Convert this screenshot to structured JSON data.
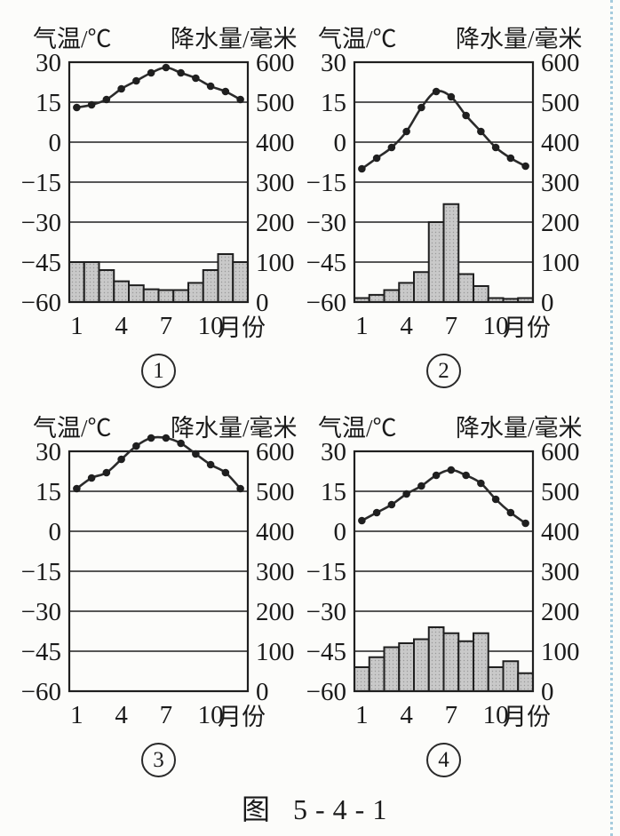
{
  "page": {
    "caption": "图 5-4-1",
    "ink_color": "#1f1f1f",
    "bar_fill": "#c9c9c9",
    "edge_dotted_color": "#a5cbdd"
  },
  "chart_data": [
    {
      "type": "line+bar",
      "label": "1",
      "title_left": "气温/℃",
      "title_right": "降水量/毫米",
      "x_unit": "月份",
      "x_tick_months": [
        1,
        4,
        7,
        10
      ],
      "x_tick_labels": [
        "1",
        "4",
        "7",
        "10"
      ],
      "left_axis": {
        "min": -60,
        "max": 30,
        "tick_values": [
          30,
          15,
          0,
          -15,
          -30,
          -45,
          -60
        ],
        "tick_labels": [
          "30",
          "15",
          "0",
          "−15",
          "−30",
          "−45",
          "−60"
        ]
      },
      "right_axis": {
        "min": 0,
        "max": 600,
        "tick_values": [
          600,
          500,
          400,
          300,
          200,
          100,
          0
        ],
        "tick_labels": [
          "600",
          "500",
          "400",
          "300",
          "200",
          "100",
          "0"
        ]
      },
      "months": [
        1,
        2,
        3,
        4,
        5,
        6,
        7,
        8,
        9,
        10,
        11,
        12
      ],
      "temperature_c": [
        13,
        14,
        16,
        20,
        23,
        26,
        28,
        26,
        24,
        21,
        19,
        16
      ],
      "precipitation_mm": [
        100,
        100,
        80,
        52,
        42,
        32,
        30,
        30,
        48,
        80,
        120,
        100
      ]
    },
    {
      "type": "line+bar",
      "label": "2",
      "title_left": "气温/℃",
      "title_right": "降水量/毫米",
      "x_unit": "月份",
      "x_tick_months": [
        1,
        4,
        7,
        10
      ],
      "x_tick_labels": [
        "1",
        "4",
        "7",
        "10"
      ],
      "left_axis": {
        "min": -60,
        "max": 30,
        "tick_values": [
          30,
          15,
          0,
          -15,
          -30,
          -45,
          -60
        ],
        "tick_labels": [
          "30",
          "15",
          "0",
          "−15",
          "−30",
          "−45",
          "−60"
        ]
      },
      "right_axis": {
        "min": 0,
        "max": 600,
        "tick_values": [
          600,
          500,
          400,
          300,
          200,
          100,
          0
        ],
        "tick_labels": [
          "600",
          "500",
          "400",
          "300",
          "200",
          "100",
          "0"
        ]
      },
      "months": [
        1,
        2,
        3,
        4,
        5,
        6,
        7,
        8,
        9,
        10,
        11,
        12
      ],
      "temperature_c": [
        -10,
        -6,
        -2,
        4,
        13,
        19,
        17,
        10,
        4,
        -2,
        -6,
        -9
      ],
      "precipitation_mm": [
        10,
        18,
        30,
        48,
        75,
        200,
        245,
        70,
        40,
        10,
        8,
        10
      ]
    },
    {
      "type": "line+bar",
      "label": "3",
      "title_left": "气温/℃",
      "title_right": "降水量/毫米",
      "x_unit": "月份",
      "x_tick_months": [
        1,
        4,
        7,
        10
      ],
      "x_tick_labels": [
        "1",
        "4",
        "7",
        "10"
      ],
      "left_axis": {
        "min": -60,
        "max": 30,
        "tick_values": [
          30,
          15,
          0,
          -15,
          -30,
          -45,
          -60
        ],
        "tick_labels": [
          "30",
          "15",
          "0",
          "−15",
          "−30",
          "−45",
          "−60"
        ]
      },
      "right_axis": {
        "min": 0,
        "max": 600,
        "tick_values": [
          600,
          500,
          400,
          300,
          200,
          100,
          0
        ],
        "tick_labels": [
          "600",
          "500",
          "400",
          "300",
          "200",
          "100",
          "0"
        ]
      },
      "months": [
        1,
        2,
        3,
        4,
        5,
        6,
        7,
        8,
        9,
        10,
        11,
        12
      ],
      "temperature_c": [
        16,
        20,
        22,
        27,
        32,
        35,
        35,
        33,
        29,
        25,
        22,
        16
      ],
      "precipitation_mm": [
        0,
        0,
        0,
        0,
        0,
        0,
        0,
        0,
        0,
        0,
        0,
        0
      ]
    },
    {
      "type": "line+bar",
      "label": "4",
      "title_left": "气温/℃",
      "title_right": "降水量/毫米",
      "x_unit": "月份",
      "x_tick_months": [
        1,
        4,
        7,
        10
      ],
      "x_tick_labels": [
        "1",
        "4",
        "7",
        "10"
      ],
      "left_axis": {
        "min": -60,
        "max": 30,
        "tick_values": [
          30,
          15,
          0,
          -15,
          -30,
          -45,
          -60
        ],
        "tick_labels": [
          "30",
          "15",
          "0",
          "−15",
          "−30",
          "−45",
          "−60"
        ]
      },
      "right_axis": {
        "min": 0,
        "max": 600,
        "tick_values": [
          600,
          500,
          400,
          300,
          200,
          100,
          0
        ],
        "tick_labels": [
          "600",
          "500",
          "400",
          "300",
          "200",
          "100",
          "0"
        ]
      },
      "months": [
        1,
        2,
        3,
        4,
        5,
        6,
        7,
        8,
        9,
        10,
        11,
        12
      ],
      "temperature_c": [
        4,
        7,
        10,
        14,
        17,
        21,
        23,
        21,
        18,
        12,
        7,
        3
      ],
      "precipitation_mm": [
        60,
        85,
        110,
        120,
        130,
        160,
        145,
        125,
        145,
        60,
        75,
        45
      ]
    }
  ]
}
